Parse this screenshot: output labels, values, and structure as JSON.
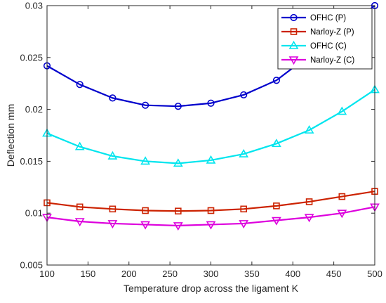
{
  "chart_data": {
    "type": "line",
    "title": "",
    "xlabel": "Temperature drop across the ligament K",
    "ylabel": "Deflection mm",
    "xlim": [
      100,
      500
    ],
    "ylim": [
      0.005,
      0.03
    ],
    "x_ticks": [
      100,
      150,
      200,
      250,
      300,
      350,
      400,
      450,
      500
    ],
    "x_tick_labels": [
      "100",
      "150",
      "200",
      "250",
      "300",
      "350",
      "400",
      "450",
      "500"
    ],
    "y_ticks": [
      0.005,
      0.01,
      0.015,
      0.02,
      0.025,
      0.03
    ],
    "y_tick_labels": [
      "0.005",
      "0.01",
      "0.015",
      "0.02",
      "0.025",
      "0.03"
    ],
    "grid": false,
    "legend_position": "top-right",
    "series": [
      {
        "name": "OFHC (P)",
        "color": "#0000CC",
        "marker": "circle",
        "x": [
          100,
          140,
          180,
          220,
          260,
          300,
          340,
          380,
          500
        ],
        "y": [
          0.0242,
          0.0224,
          0.0211,
          0.0204,
          0.0203,
          0.0206,
          0.0214,
          0.0228,
          0.03
        ]
      },
      {
        "name": "Narloy-Z (P)",
        "color": "#CC2200",
        "marker": "square",
        "x": [
          100,
          140,
          180,
          220,
          260,
          300,
          340,
          380,
          420,
          460,
          500
        ],
        "y": [
          0.011,
          0.0106,
          0.0104,
          0.01025,
          0.0102,
          0.01025,
          0.0104,
          0.0107,
          0.0111,
          0.0116,
          0.0121
        ]
      },
      {
        "name": "OFHC (C)",
        "color": "#00E5EE",
        "marker": "triangle-up",
        "x": [
          100,
          140,
          180,
          220,
          260,
          300,
          340,
          380,
          420,
          460,
          500
        ],
        "y": [
          0.0177,
          0.0164,
          0.0155,
          0.015,
          0.0148,
          0.0151,
          0.0157,
          0.0167,
          0.018,
          0.0198,
          0.0219
        ]
      },
      {
        "name": "Narloy-Z (C)",
        "color": "#DD00DD",
        "marker": "triangle-down",
        "x": [
          100,
          140,
          180,
          220,
          260,
          300,
          340,
          380,
          420,
          460,
          500
        ],
        "y": [
          0.0096,
          0.0092,
          0.009,
          0.0089,
          0.0088,
          0.0089,
          0.009,
          0.0093,
          0.0096,
          0.01,
          0.0106
        ]
      }
    ]
  }
}
